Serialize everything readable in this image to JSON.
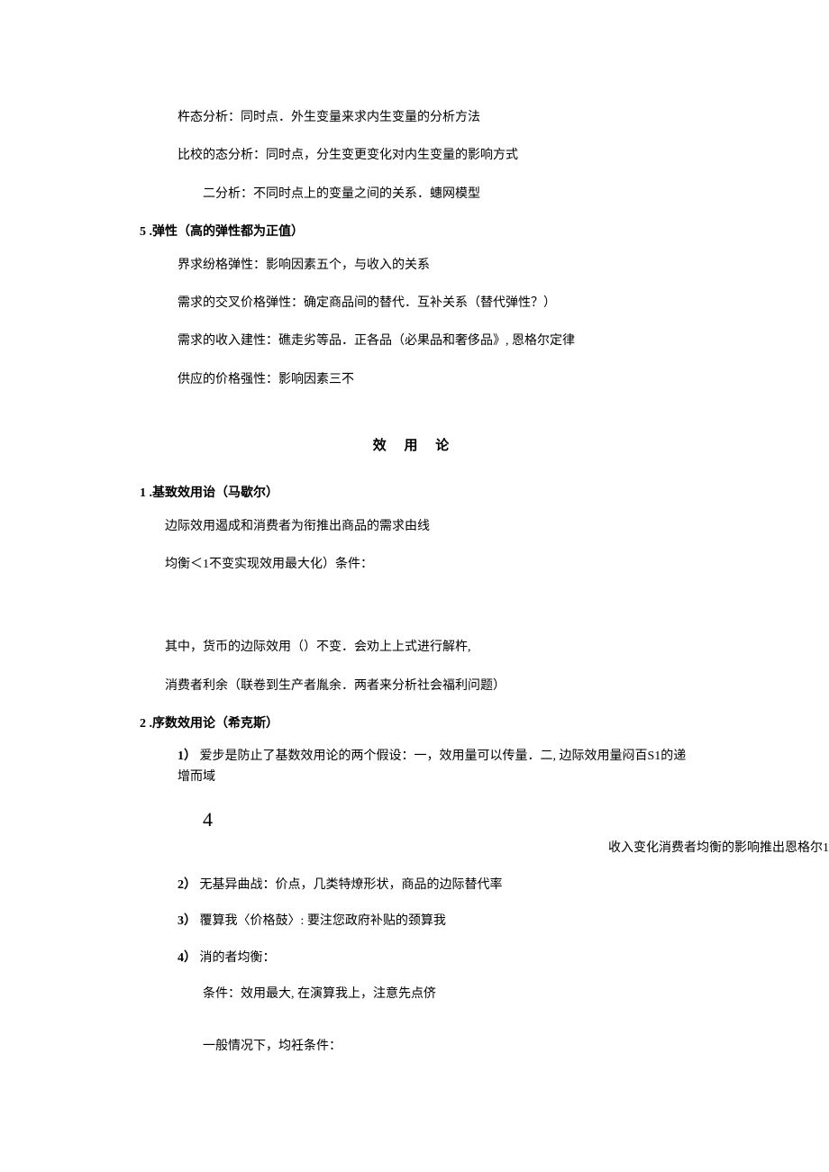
{
  "sec1": {
    "p1": "杵态分析：同时点．外生变量来求内生变量的分析方法",
    "p2": "比校的态分析：同时点，分生变更变化对内生变量的影响方式",
    "p3": "　二分析：不同时点上的变量之间的关系．蟪网模型",
    "item5_label": "5  .弹性（高的弹性都为正值）",
    "p4": "界求纷格弹性：影响因素五个，与收入的关系",
    "p5": "需求的交叉价格弹性：确定商品间的替代．互补关系（替代弹性？）",
    "p6": "需求的收入建性：礁走劣等品．正各品（必果品和奢侈品》, 恩格尔定律",
    "p7": "供应的价格强性：影响因素三不"
  },
  "sec2": {
    "title": "效 用 论",
    "item1_label": "1  .基致效用诒（马歇尔）",
    "p1": "边际效用遏成和消费者为衔推出商品的需求由线",
    "p2": "均衡＜1不变实现效用最大化）条件：",
    "p3": "其中，货币的边际效用（）不变．会劝上上式进行解杵,",
    "p4": "消费者利余（联卷到生产者胤余．两者来分析社会福利问题）",
    "item2_label": "2  .序数效用论（希克斯）",
    "s1_label": "1）",
    "s1_text": "爱步是防止了基数效用论的两个假设：一，效用量可以传量．二, 边际效用量闷百S1的递增而域",
    "big4": "4",
    "right": "收入变化消费者均衡的影响推出恩格尔1",
    "s2_label": "2）",
    "s2_text": "无基异曲战：价点，几类特燎形状，商品的边际替代率",
    "s3_label": "3）",
    "s3_text": "覆算我〈价格鼓〉: 要注您政府补贴的颈算我",
    "s4_label": "4）",
    "s4_text": "消的者均衡：",
    "s4a": "条件：效用最大, 在演算我上，注意先点侪",
    "s4b": "一般情况下，均衽条件："
  }
}
